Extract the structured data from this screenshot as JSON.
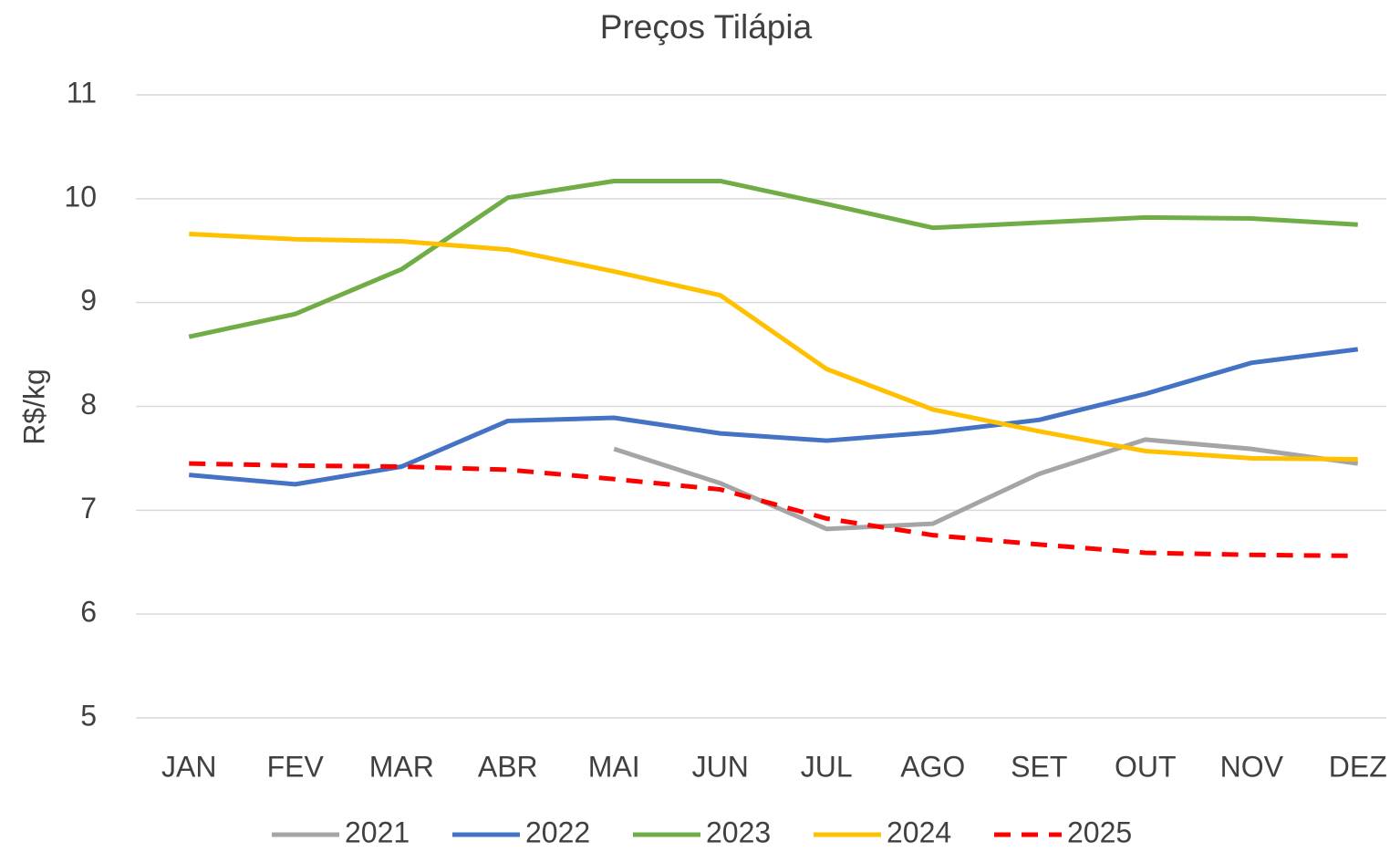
{
  "chart_data": {
    "type": "line",
    "title": "Preços Tilápia",
    "y_label": "R$/kg",
    "categories": [
      "JAN",
      "FEV",
      "MAR",
      "ABR",
      "MAI",
      "JUN",
      "JUL",
      "AGO",
      "SET",
      "OUT",
      "NOV",
      "DEZ"
    ],
    "ylim": [
      5,
      11
    ],
    "yticks": [
      5,
      6,
      7,
      8,
      9,
      10,
      11
    ],
    "grid": true,
    "legend": "bottom",
    "series": [
      {
        "name": "2021",
        "color": "#a5a5a5",
        "values": [
          null,
          null,
          null,
          null,
          7.59,
          7.26,
          6.82,
          6.87,
          7.35,
          7.68,
          7.59,
          7.45
        ]
      },
      {
        "name": "2022",
        "color": "#4472c4",
        "values": [
          7.34,
          7.25,
          7.42,
          7.86,
          7.89,
          7.74,
          7.67,
          7.75,
          7.87,
          8.12,
          8.42,
          8.55
        ]
      },
      {
        "name": "2023",
        "color": "#70ad47",
        "values": [
          8.67,
          8.89,
          9.32,
          10.01,
          10.17,
          10.17,
          9.95,
          9.72,
          9.77,
          9.82,
          9.81,
          9.75
        ]
      },
      {
        "name": "2024",
        "color": "#ffc000",
        "values": [
          9.66,
          9.61,
          9.59,
          9.51,
          9.3,
          9.07,
          8.36,
          7.97,
          7.76,
          7.57,
          7.5,
          7.49
        ]
      },
      {
        "name": "2025",
        "color": "#ff0000",
        "dashed": true,
        "values": [
          7.45,
          7.43,
          7.42,
          7.39,
          7.3,
          7.2,
          6.92,
          6.76,
          6.67,
          6.59,
          6.57,
          6.56
        ]
      }
    ]
  }
}
